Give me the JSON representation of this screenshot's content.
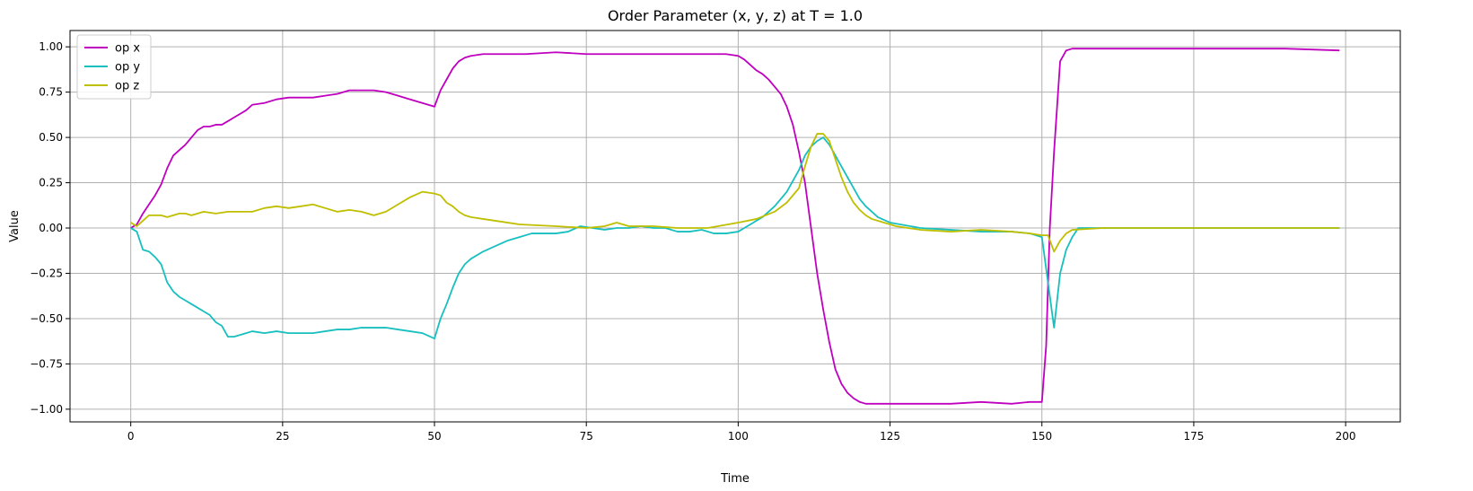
{
  "chart_data": {
    "type": "line",
    "title": "Order Parameter (x, y, z) at T = 1.0",
    "xlabel": "Time",
    "ylabel": "Value",
    "xlim": [
      -10,
      209
    ],
    "ylim": [
      -1.07,
      1.09
    ],
    "xticks": [
      0,
      25,
      50,
      75,
      100,
      125,
      150,
      175,
      200
    ],
    "xtick_labels": [
      "0",
      "25",
      "50",
      "75",
      "100",
      "125",
      "150",
      "175",
      "200"
    ],
    "yticks": [
      1.0,
      0.75,
      0.5,
      0.25,
      0.0,
      -0.25,
      -0.5,
      -0.75,
      -1.0
    ],
    "ytick_labels": [
      "1.00",
      "0.75",
      "0.50",
      "0.25",
      "0.00",
      "−0.25",
      "−0.50",
      "−0.75",
      "−1.00"
    ],
    "grid": true,
    "legend_position": "upper-left",
    "series": [
      {
        "name": "op x",
        "color": "#bf00bf",
        "x": [
          0,
          1,
          2,
          3,
          4,
          5,
          6,
          7,
          8,
          9,
          10,
          11,
          12,
          13,
          14,
          15,
          16,
          17,
          18,
          19,
          20,
          22,
          24,
          26,
          28,
          30,
          32,
          34,
          36,
          38,
          40,
          42,
          44,
          46,
          48,
          50,
          51,
          52,
          53,
          54,
          55,
          56,
          58,
          60,
          65,
          70,
          75,
          80,
          85,
          90,
          95,
          98,
          100,
          101,
          102,
          103,
          104,
          105,
          106,
          107,
          108,
          109,
          110,
          111,
          112,
          113,
          114,
          115,
          116,
          117,
          118,
          119,
          120,
          121,
          122,
          125,
          130,
          135,
          140,
          145,
          148,
          150,
          150.7,
          151.3,
          152,
          153,
          154,
          155,
          160,
          170,
          180,
          190,
          199
        ],
        "y": [
          0.0,
          0.02,
          0.08,
          0.13,
          0.18,
          0.24,
          0.33,
          0.4,
          0.43,
          0.46,
          0.5,
          0.54,
          0.56,
          0.56,
          0.57,
          0.57,
          0.59,
          0.61,
          0.63,
          0.65,
          0.68,
          0.69,
          0.71,
          0.72,
          0.72,
          0.72,
          0.73,
          0.74,
          0.76,
          0.76,
          0.76,
          0.75,
          0.73,
          0.71,
          0.69,
          0.67,
          0.76,
          0.82,
          0.88,
          0.92,
          0.94,
          0.95,
          0.96,
          0.96,
          0.96,
          0.97,
          0.96,
          0.96,
          0.96,
          0.96,
          0.96,
          0.96,
          0.95,
          0.93,
          0.9,
          0.87,
          0.85,
          0.82,
          0.78,
          0.74,
          0.67,
          0.57,
          0.42,
          0.25,
          0.0,
          -0.25,
          -0.45,
          -0.63,
          -0.78,
          -0.86,
          -0.91,
          -0.94,
          -0.96,
          -0.97,
          -0.97,
          -0.97,
          -0.97,
          -0.97,
          -0.96,
          -0.97,
          -0.96,
          -0.96,
          -0.65,
          0.0,
          0.42,
          0.92,
          0.98,
          0.99,
          0.99,
          0.99,
          0.99,
          0.99,
          0.98
        ]
      },
      {
        "name": "op y",
        "color": "#17bfbf",
        "x": [
          0,
          1,
          2,
          3,
          4,
          5,
          6,
          7,
          8,
          9,
          10,
          11,
          12,
          13,
          14,
          15,
          16,
          17,
          18,
          19,
          20,
          22,
          24,
          26,
          28,
          30,
          32,
          34,
          36,
          38,
          40,
          42,
          44,
          46,
          48,
          50,
          51,
          52,
          53,
          54,
          55,
          56,
          58,
          60,
          62,
          64,
          66,
          68,
          70,
          72,
          74,
          76,
          78,
          80,
          82,
          84,
          86,
          88,
          90,
          92,
          94,
          96,
          98,
          100,
          102,
          104,
          106,
          108,
          110,
          111,
          112,
          113,
          114,
          115,
          116,
          117,
          118,
          119,
          120,
          121,
          122,
          123,
          125,
          130,
          135,
          140,
          145,
          148,
          150,
          151,
          152,
          153,
          154,
          155,
          156,
          160,
          170,
          180,
          190,
          199
        ],
        "y": [
          0.0,
          -0.02,
          -0.12,
          -0.13,
          -0.16,
          -0.2,
          -0.3,
          -0.35,
          -0.38,
          -0.4,
          -0.42,
          -0.44,
          -0.46,
          -0.48,
          -0.52,
          -0.54,
          -0.6,
          -0.6,
          -0.59,
          -0.58,
          -0.57,
          -0.58,
          -0.57,
          -0.58,
          -0.58,
          -0.58,
          -0.57,
          -0.56,
          -0.56,
          -0.55,
          -0.55,
          -0.55,
          -0.56,
          -0.57,
          -0.58,
          -0.61,
          -0.5,
          -0.42,
          -0.33,
          -0.25,
          -0.2,
          -0.17,
          -0.13,
          -0.1,
          -0.07,
          -0.05,
          -0.03,
          -0.03,
          -0.03,
          -0.02,
          0.01,
          0.0,
          -0.01,
          0.0,
          0.0,
          0.01,
          0.0,
          0.0,
          -0.02,
          -0.02,
          -0.01,
          -0.03,
          -0.03,
          -0.02,
          0.02,
          0.06,
          0.12,
          0.2,
          0.32,
          0.4,
          0.45,
          0.48,
          0.5,
          0.46,
          0.4,
          0.34,
          0.28,
          0.22,
          0.16,
          0.12,
          0.09,
          0.06,
          0.03,
          0.0,
          -0.01,
          -0.02,
          -0.02,
          -0.03,
          -0.05,
          -0.3,
          -0.55,
          -0.25,
          -0.12,
          -0.05,
          0.0,
          0.0,
          0.0,
          0.0,
          0.0,
          0.0
        ]
      },
      {
        "name": "op z",
        "color": "#bfbf00",
        "x": [
          0,
          1,
          2,
          3,
          4,
          5,
          6,
          7,
          8,
          9,
          10,
          12,
          14,
          16,
          18,
          20,
          22,
          24,
          26,
          28,
          30,
          32,
          34,
          36,
          38,
          40,
          42,
          44,
          46,
          48,
          50,
          51,
          52,
          53,
          54,
          55,
          56,
          58,
          60,
          64,
          70,
          75,
          78,
          80,
          82,
          86,
          90,
          95,
          100,
          103,
          106,
          108,
          110,
          111,
          112,
          113,
          114,
          115,
          116,
          117,
          118,
          119,
          120,
          121,
          122,
          124,
          126,
          130,
          135,
          140,
          145,
          148,
          150,
          151,
          152,
          153,
          154,
          155,
          160,
          170,
          180,
          190,
          199
        ],
        "y": [
          0.03,
          0.01,
          0.04,
          0.07,
          0.07,
          0.07,
          0.06,
          0.07,
          0.08,
          0.08,
          0.07,
          0.09,
          0.08,
          0.09,
          0.09,
          0.09,
          0.11,
          0.12,
          0.11,
          0.12,
          0.13,
          0.11,
          0.09,
          0.1,
          0.09,
          0.07,
          0.09,
          0.13,
          0.17,
          0.2,
          0.19,
          0.18,
          0.14,
          0.12,
          0.09,
          0.07,
          0.06,
          0.05,
          0.04,
          0.02,
          0.01,
          0.0,
          0.01,
          0.03,
          0.01,
          0.01,
          0.0,
          0.0,
          0.03,
          0.05,
          0.09,
          0.14,
          0.22,
          0.34,
          0.45,
          0.52,
          0.52,
          0.48,
          0.38,
          0.28,
          0.2,
          0.14,
          0.1,
          0.07,
          0.05,
          0.03,
          0.01,
          -0.01,
          -0.02,
          -0.01,
          -0.02,
          -0.03,
          -0.04,
          -0.04,
          -0.13,
          -0.07,
          -0.03,
          -0.01,
          0.0,
          0.0,
          0.0,
          0.0,
          0.0
        ]
      }
    ]
  }
}
